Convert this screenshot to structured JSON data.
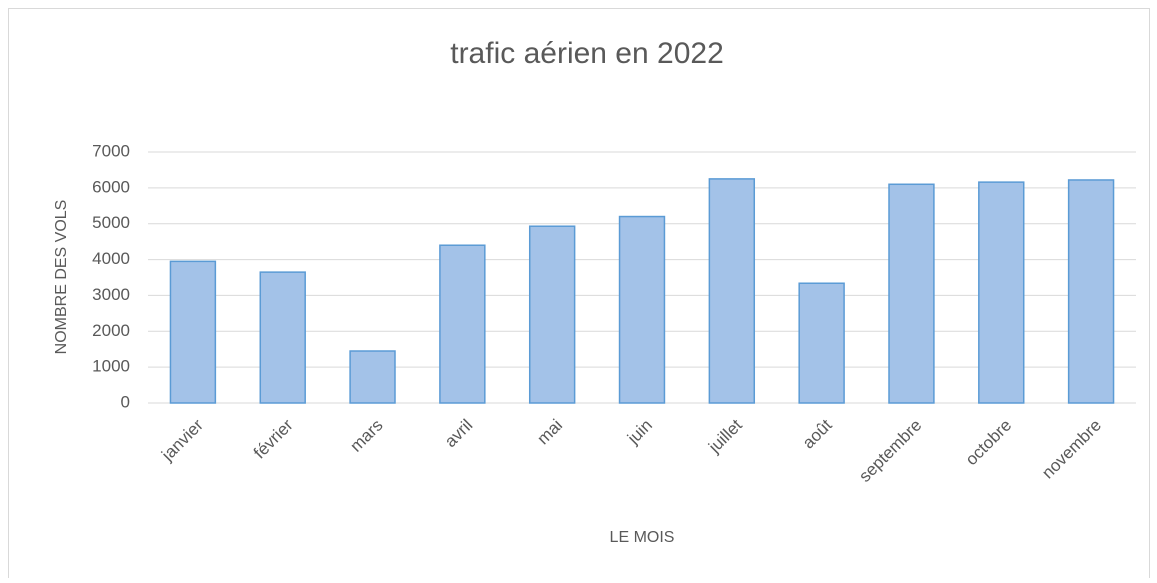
{
  "chart_data": {
    "type": "bar",
    "title": "trafic aérien en 2022",
    "x_label": "LE MOIS",
    "y_label": "NOMBRE DES VOLS",
    "categories": [
      "janvier",
      "février",
      "mars",
      "avril",
      "mai",
      "juin",
      "juillet",
      "août",
      "septembre",
      "octobre",
      "novembre"
    ],
    "values": [
      3950,
      3650,
      1450,
      4400,
      4930,
      5200,
      6250,
      3340,
      6100,
      6160,
      6220
    ],
    "color": "#a3c2e8",
    "edge_color": "#5b9bd5",
    "ylim": [
      0,
      7000
    ],
    "yticks": [
      0,
      1000,
      2000,
      3000,
      4000,
      5000,
      6000,
      7000
    ],
    "grid": true
  }
}
